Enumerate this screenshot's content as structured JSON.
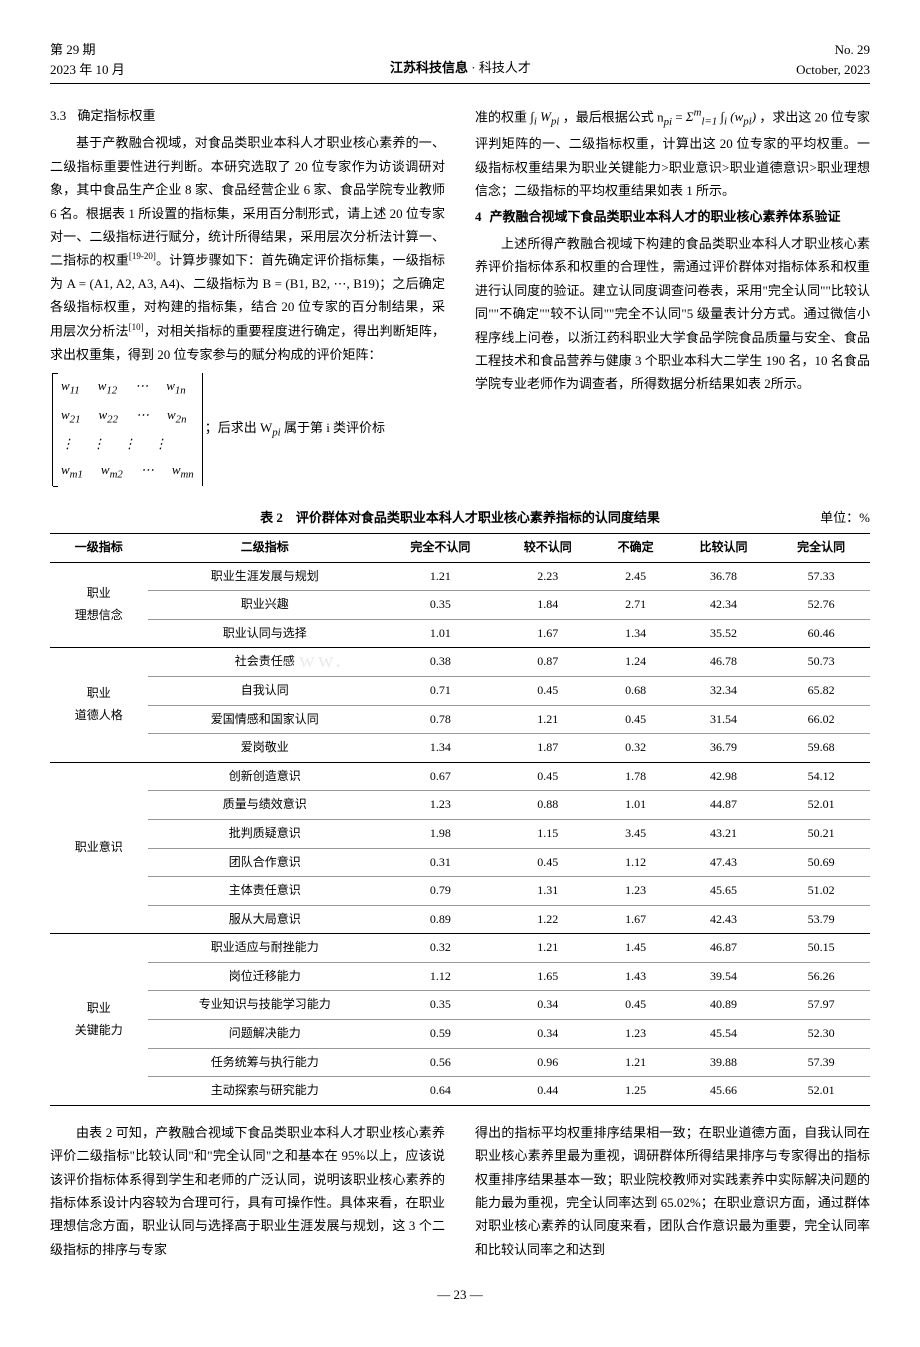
{
  "header": {
    "issue": "第 29 期",
    "date_cn": "2023 年 10 月",
    "journal": "江苏科技信息",
    "section": "· 科技人才",
    "issue_en": "No. 29",
    "date_en": "October, 2023"
  },
  "left_col": {
    "sec_num": "3.3",
    "sec_title": "确定指标权重",
    "p1": "基于产教融合视域，对食品类职业本科人才职业核心素养的一、二级指标重要性进行判断。本研究选取了 20 位专家作为访谈调研对象，其中食品生产企业 8 家、食品经营企业 6 家、食品学院专业教师 6 名。根据表 1 所设置的指标集，采用百分制形式，请上述 20 位专家对一、二级指标进行赋分，统计所得结果，采用层次分析法计算一、二指标的权重",
    "p1_ref": "[19-20]",
    "p1_suffix": "。计算步骤如下：首先确定评价指标集，一级指标为 A = (A1, A2, A3, A4)、二级指标为 B = (B1, B2, ⋯, B19)；之后确定各级指标权重，对构建的指标集，结合 20 位专家的百分制结果，采用层次分析法",
    "p1_ref2": "[10]",
    "p1_suffix2": "，对相关指标的重要程度进行确定，得出判断矩阵，求出权重集，得到 20 位专家参与的赋分构成的评价矩阵：",
    "matrix_after": "；后求出 W",
    "matrix_after2": " 属于第 i 类评价标"
  },
  "right_col": {
    "p1_prefix": "准的权重",
    "p1_mid": "，最后根据公式 n",
    "p1_formula2": " = ",
    "p1_suffix": "，求出这 20 位专家评判矩阵的一、二级指标权重，计算出这 20 位专家的平均权重。一级指标权重结果为职业关键能力>职业意识>职业道德意识>职业理想信念；二级指标的平均权重结果如表 1 所示。",
    "sec4_num": "4",
    "sec4_title": "产教融合视域下食品类职业本科人才的职业核心素养体系验证",
    "p2": "上述所得产教融合视域下构建的食品类职业本科人才职业核心素养评价指标体系和权重的合理性，需通过评价群体对指标体系和权重进行认同度的验证。建立认同度调查问卷表，采用\"完全认同\"\"比较认同\"\"不确定\"\"较不认同\"\"完全不认同\"5 级量表计分方式。通过微信小程序线上问卷，以浙江药科职业大学食品学院食品质量与安全、食品工程技术和食品营养与健康 3 个职业本科大二学生 190 名，10 名食品学院专业老师作为调查者，所得数据分析结果如表 2所示。"
  },
  "table2": {
    "caption": "表 2　评价群体对食品类职业本科人才职业核心素养指标的认同度结果",
    "unit": "单位：%",
    "headers": [
      "一级指标",
      "二级指标",
      "完全不认同",
      "较不认同",
      "不确定",
      "比较认同",
      "完全认同"
    ],
    "groups": [
      {
        "name": "职业\n理想信念",
        "rows": [
          [
            "职业生涯发展与规划",
            "1.21",
            "2.23",
            "2.45",
            "36.78",
            "57.33"
          ],
          [
            "职业兴趣",
            "0.35",
            "1.84",
            "2.71",
            "42.34",
            "52.76"
          ],
          [
            "职业认同与选择",
            "1.01",
            "1.67",
            "1.34",
            "35.52",
            "60.46"
          ]
        ]
      },
      {
        "name": "职业\n道德人格",
        "rows": [
          [
            "社会责任感",
            "0.38",
            "0.87",
            "1.24",
            "46.78",
            "50.73"
          ],
          [
            "自我认同",
            "0.71",
            "0.45",
            "0.68",
            "32.34",
            "65.82"
          ],
          [
            "爱国情感和国家认同",
            "0.78",
            "1.21",
            "0.45",
            "31.54",
            "66.02"
          ],
          [
            "爱岗敬业",
            "1.34",
            "1.87",
            "0.32",
            "36.79",
            "59.68"
          ]
        ]
      },
      {
        "name": "职业意识",
        "rows": [
          [
            "创新创造意识",
            "0.67",
            "0.45",
            "1.78",
            "42.98",
            "54.12"
          ],
          [
            "质量与绩效意识",
            "1.23",
            "0.88",
            "1.01",
            "44.87",
            "52.01"
          ],
          [
            "批判质疑意识",
            "1.98",
            "1.15",
            "3.45",
            "43.21",
            "50.21"
          ],
          [
            "团队合作意识",
            "0.31",
            "0.45",
            "1.12",
            "47.43",
            "50.69"
          ],
          [
            "主体责任意识",
            "0.79",
            "1.31",
            "1.23",
            "45.65",
            "51.02"
          ],
          [
            "服从大局意识",
            "0.89",
            "1.22",
            "1.67",
            "42.43",
            "53.79"
          ]
        ]
      },
      {
        "name": "职业\n关键能力",
        "rows": [
          [
            "职业适应与耐挫能力",
            "0.32",
            "1.21",
            "1.45",
            "46.87",
            "50.15"
          ],
          [
            "岗位迁移能力",
            "1.12",
            "1.65",
            "1.43",
            "39.54",
            "56.26"
          ],
          [
            "专业知识与技能学习能力",
            "0.35",
            "0.34",
            "0.45",
            "40.89",
            "57.97"
          ],
          [
            "问题解决能力",
            "0.59",
            "0.34",
            "1.23",
            "45.54",
            "52.30"
          ],
          [
            "任务统筹与执行能力",
            "0.56",
            "0.96",
            "1.21",
            "39.88",
            "57.39"
          ],
          [
            "主动探索与研究能力",
            "0.64",
            "0.44",
            "1.25",
            "45.66",
            "52.01"
          ]
        ]
      }
    ]
  },
  "bottom": {
    "left_p": "由表 2 可知，产教融合视域下食品类职业本科人才职业核心素养评价二级指标\"比较认同\"和\"完全认同\"之和基本在 95%以上，应该说该评价指标体系得到学生和老师的广泛认同，说明该职业核心素养的指标体系设计内容较为合理可行，具有可操作性。具体来看，在职业理想信念方面，职业认同与选择高于职业生涯发展与规划，这 3 个二级指标的排序与专家",
    "right_p": "得出的指标平均权重排序结果相一致；在职业道德方面，自我认同在职业核心素养里最为重视，调研群体所得结果排序与专家得出的指标权重排序结果基本一致；职业院校教师对实践素养中实际解决问题的能力最为重视，完全认同率达到 65.02%；在职业意识方面，通过群体对职业核心素养的认同度来看，团队合作意识最为重要，完全认同率和比较认同率之和达到"
  },
  "page_num": "— 23 —"
}
